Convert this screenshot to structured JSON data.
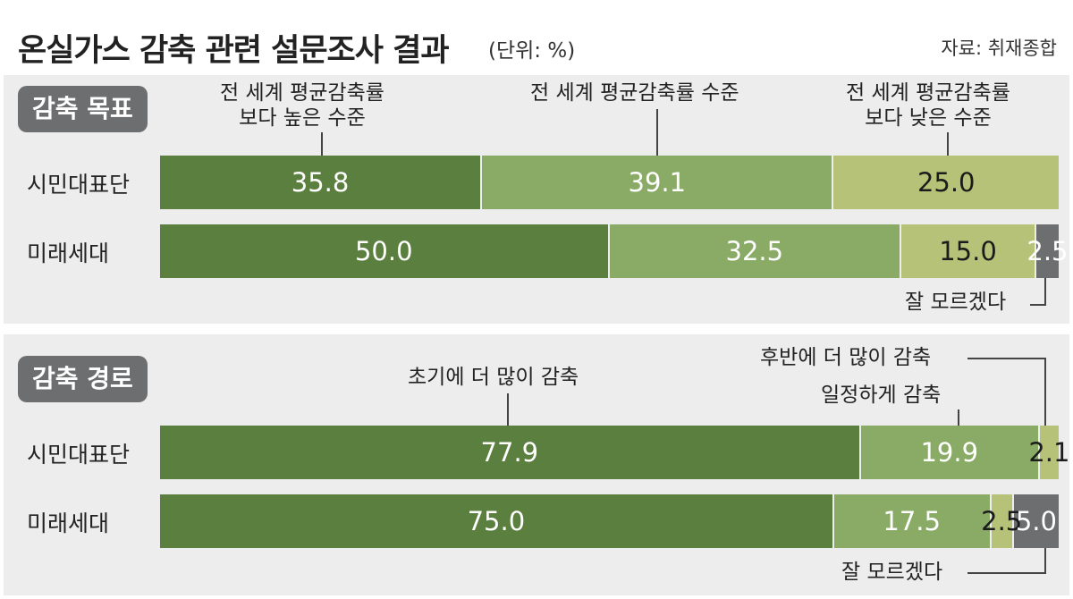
{
  "header": {
    "title": "온실가스 감축 관련 설문조사 결과",
    "unit": "(단위: %)",
    "source": "자료: 취재종합"
  },
  "sections": [
    {
      "label": "감축 목표",
      "annotations": [
        "전 세계 평균감축률\n보다 높은 수준",
        "전 세계 평균감축률 수준",
        "전 세계 평균감축률\n보다 낮은 수준",
        "잘 모르겠다"
      ]
    },
    {
      "label": "감축 경로",
      "annotations": [
        "초기에 더 많이 감축",
        "일정하게 감축",
        "후반에 더 많이 감축",
        "잘 모르겠다"
      ]
    }
  ],
  "chart_data": [
    {
      "type": "bar",
      "orientation": "horizontal",
      "stacked": true,
      "title": "감축 목표",
      "unit": "%",
      "categories": [
        "시민대표단",
        "미래세대"
      ],
      "series": [
        {
          "name": "전 세계 평균감축률보다 높은 수준",
          "values": [
            35.8,
            50.0
          ],
          "color": "#5b7f3e"
        },
        {
          "name": "전 세계 평균감축률 수준",
          "values": [
            39.1,
            32.5
          ],
          "color": "#89ab66"
        },
        {
          "name": "전 세계 평균감축률보다 낮은 수준",
          "values": [
            25.0,
            15.0
          ],
          "color": "#b5c278"
        },
        {
          "name": "잘 모르겠다",
          "values": [
            null,
            2.5
          ],
          "color": "#6d6e6f"
        }
      ],
      "labels": [
        [
          "35.8",
          "39.1",
          "25.0",
          ""
        ],
        [
          "50.0",
          "32.5",
          "15.0",
          "2.5"
        ]
      ]
    },
    {
      "type": "bar",
      "orientation": "horizontal",
      "stacked": true,
      "title": "감축 경로",
      "unit": "%",
      "categories": [
        "시민대표단",
        "미래세대"
      ],
      "series": [
        {
          "name": "초기에 더 많이 감축",
          "values": [
            77.9,
            75.0
          ],
          "color": "#5b7f3e"
        },
        {
          "name": "일정하게 감축",
          "values": [
            19.9,
            17.5
          ],
          "color": "#89ab66"
        },
        {
          "name": "후반에 더 많이 감축",
          "values": [
            2.1,
            2.5
          ],
          "color": "#b5c278"
        },
        {
          "name": "잘 모르겠다",
          "values": [
            null,
            5.0
          ],
          "color": "#6d6e6f"
        }
      ],
      "labels": [
        [
          "77.9",
          "19.9",
          "2.1",
          ""
        ],
        [
          "75.0",
          "17.5",
          "2.5",
          "5.0"
        ]
      ]
    }
  ]
}
